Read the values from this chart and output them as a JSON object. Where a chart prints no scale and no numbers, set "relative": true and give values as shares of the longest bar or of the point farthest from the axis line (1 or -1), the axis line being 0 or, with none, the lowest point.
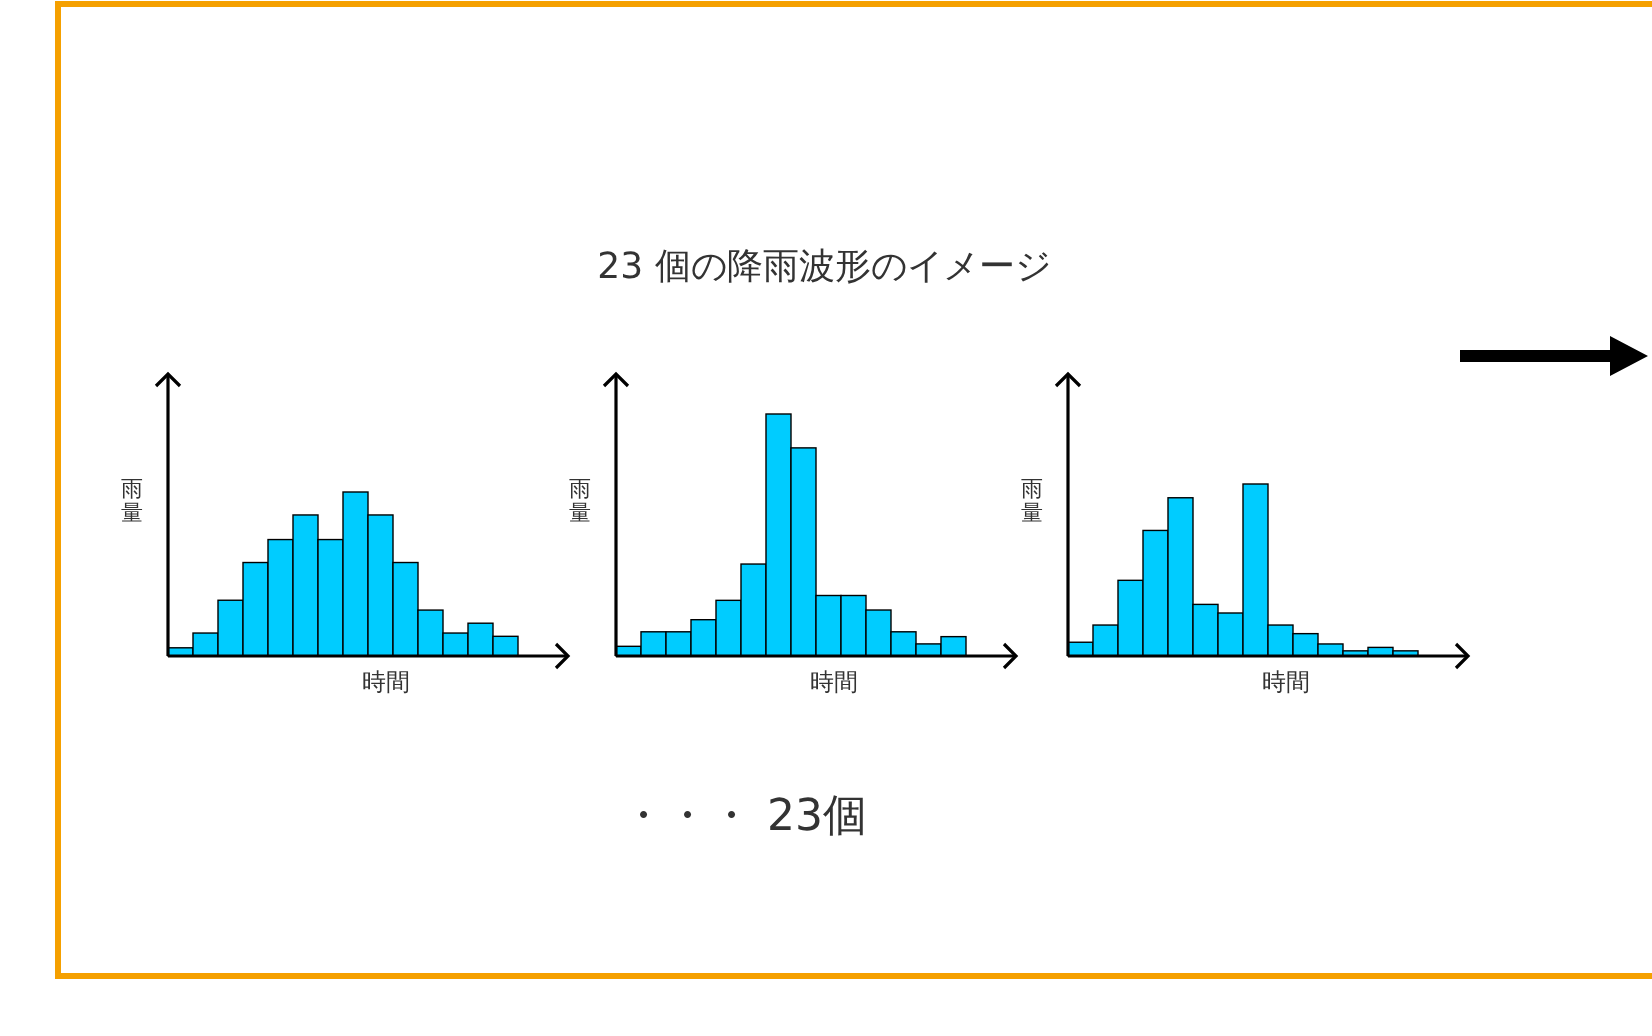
{
  "chart_data": [
    {
      "type": "bar",
      "relative": true,
      "xlabel": "時間",
      "ylabel": "雨量",
      "color": "#00ccff",
      "categories": [
        null,
        null,
        null,
        null,
        null,
        null,
        null,
        null,
        null,
        null,
        null,
        null,
        null,
        null
      ],
      "values": [
        0.05,
        0.14,
        0.34,
        0.57,
        0.71,
        0.86,
        0.71,
        1,
        0.86,
        0.57,
        0.28,
        0.14,
        0.2,
        0.12
      ]
    },
    {
      "type": "bar",
      "relative": true,
      "xlabel": "時間",
      "ylabel": "雨量",
      "color": "#00ccff",
      "categories": [
        null,
        null,
        null,
        null,
        null,
        null,
        null,
        null,
        null,
        null,
        null,
        null,
        null,
        null
      ],
      "values": [
        0.04,
        0.1,
        0.1,
        0.15,
        0.23,
        0.38,
        1,
        0.86,
        0.25,
        0.25,
        0.19,
        0.1,
        0.05,
        0.08
      ]
    },
    {
      "type": "bar",
      "relative": true,
      "xlabel": "時間",
      "ylabel": "雨量",
      "color": "#00ccff",
      "categories": [
        null,
        null,
        null,
        null,
        null,
        null,
        null,
        null,
        null,
        null,
        null,
        null,
        null,
        null
      ],
      "values": [
        0.08,
        0.18,
        0.44,
        0.73,
        0.92,
        0.3,
        0.25,
        1,
        0.18,
        0.13,
        0.07,
        0.03,
        0.05,
        0.03
      ]
    },
    {
      "type": "other",
      "title": "23 個の降雨波形のイメージ",
      "annotations": [
        "・・・ 23個"
      ]
    }
  ]
}
